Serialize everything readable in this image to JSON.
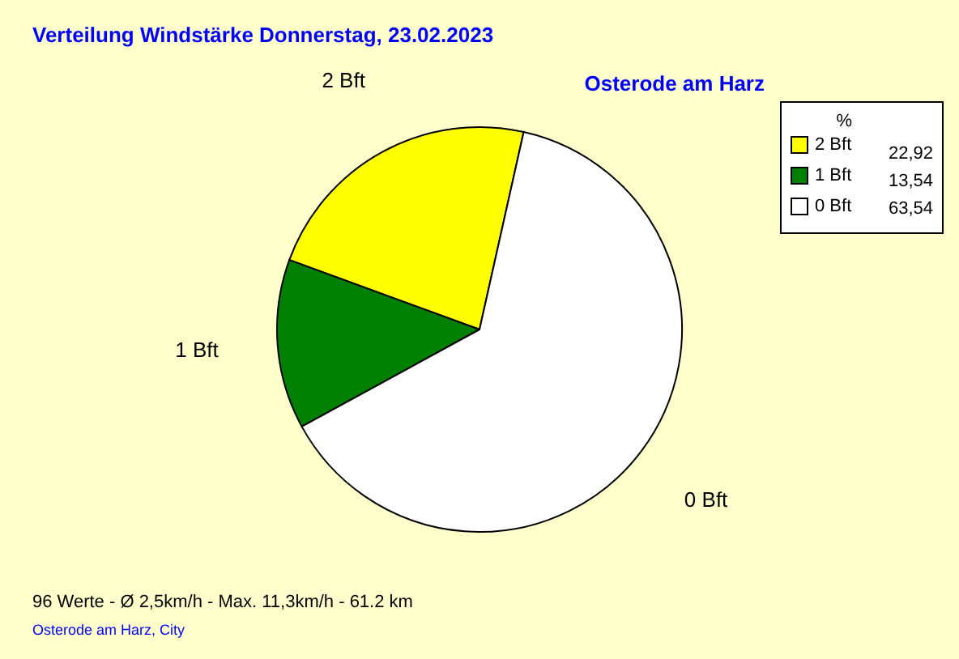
{
  "chart_data": {
    "type": "pie",
    "title": "Verteilung Windstärke  Donnerstag, 23.02.2023",
    "subtitle": "Osterode am Harz",
    "legend_title": "%",
    "categories": [
      "2 Bft",
      "1 Bft",
      "0 Bft"
    ],
    "values": [
      22.92,
      13.54,
      63.54
    ],
    "colors": [
      "#ffff00",
      "#008000",
      "#ffffff"
    ],
    "value_labels": [
      "22,92",
      "13,54",
      "63,54"
    ],
    "legend": "top right",
    "annotations": [
      "96 Werte   -   Ø 2,5km/h  -  Max. 11,3km/h   -   61.2 km",
      "Osterode am Harz, City"
    ]
  }
}
